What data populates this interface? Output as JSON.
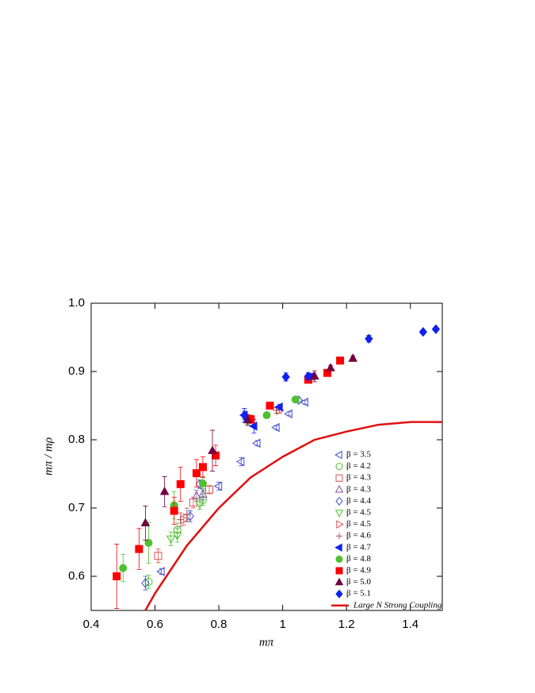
{
  "chart_data": {
    "type": "scatter",
    "x_label": "mπ",
    "y_label": "mπ / mρ",
    "xlim": [
      0.4,
      1.5
    ],
    "ylim": [
      0.55,
      1.0
    ],
    "xticks": [
      0.4,
      0.6,
      0.8,
      1.0,
      1.2,
      1.4
    ],
    "yticks": [
      0.6,
      0.7,
      0.8,
      0.9,
      {
        "value": 1.0,
        "label": "1.0"
      }
    ],
    "legend": "lower right",
    "series": [
      {
        "name": "β = 3.5",
        "color": "#4050d0",
        "marker": "tri-left",
        "filled": false,
        "x": [
          0.62,
          0.8,
          0.87,
          0.92,
          0.98,
          1.02,
          1.07
        ],
        "values": [
          0.607,
          0.732,
          0.768,
          0.795,
          0.818,
          0.838,
          0.855
        ],
        "yerr": [
          0.004,
          0.006,
          0.006,
          0.004,
          0.003,
          0.003,
          0.003
        ]
      },
      {
        "name": "β = 4.2",
        "color": "#50c030",
        "marker": "circle",
        "filled": false,
        "x": [
          0.58,
          0.67,
          0.75
        ],
        "values": [
          0.592,
          0.668,
          0.712
        ],
        "yerr": [
          0.01,
          0.01,
          0.008
        ]
      },
      {
        "name": "β = 4.3",
        "color": "#e05050",
        "marker": "square",
        "filled": false,
        "x": [
          0.61,
          0.72,
          0.77
        ],
        "values": [
          0.63,
          0.708,
          0.727
        ],
        "yerr": [
          0.01,
          0.008,
          0.006
        ]
      },
      {
        "name": "β = 4.3",
        "color": "#8050a0",
        "marker": "tri-up",
        "filled": false,
        "x": [
          0.73,
          0.75
        ],
        "values": [
          0.718,
          0.72
        ],
        "yerr": [
          0.008,
          0.008
        ]
      },
      {
        "name": "β = 4.4",
        "color": "#4050d0",
        "marker": "diamond",
        "filled": false,
        "x": [
          0.57,
          0.71,
          0.74,
          1.05
        ],
        "values": [
          0.59,
          0.688,
          0.735,
          0.858
        ],
        "yerr": [
          0.01,
          0.008,
          0.006,
          0.003
        ]
      },
      {
        "name": "β = 4.5",
        "color": "#50c030",
        "marker": "tri-down",
        "filled": false,
        "x": [
          0.65,
          0.67,
          0.74
        ],
        "values": [
          0.655,
          0.66,
          0.706
        ],
        "yerr": [
          0.01,
          0.01,
          0.008
        ]
      },
      {
        "name": "β = 4.5",
        "color": "#e05050",
        "marker": "tri-right",
        "filled": false,
        "x": [
          0.69,
          0.99
        ],
        "values": [
          0.683,
          0.843
        ],
        "yerr": [
          0.008,
          0.004
        ]
      },
      {
        "name": "β = 4.6",
        "color": "#b05050",
        "marker": "plus",
        "filled": false,
        "x": [
          0.68,
          0.7,
          0.98
        ],
        "values": [
          0.683,
          0.69,
          0.843
        ],
        "yerr": [
          0.01,
          0.01,
          0.004
        ]
      },
      {
        "name": "β = 4.7",
        "color": "#1020f0",
        "marker": "tri-left",
        "filled": true,
        "x": [
          0.88,
          0.91,
          0.99,
          1.09
        ],
        "values": [
          0.836,
          0.82,
          0.848,
          0.893
        ],
        "yerr": [
          0.006,
          0.01,
          0.004,
          0.004
        ]
      },
      {
        "name": "β = 4.8",
        "color": "#50c030",
        "marker": "circle",
        "filled": true,
        "x": [
          0.5,
          0.58,
          0.66,
          0.75,
          0.89,
          0.95,
          1.04
        ],
        "values": [
          0.612,
          0.649,
          0.704,
          0.736,
          0.829,
          0.836,
          0.859
        ],
        "yerr": [
          0.02,
          0.03,
          0.02,
          0.01,
          0.006,
          0.004,
          0.003
        ]
      },
      {
        "name": "β = 4.9",
        "color": "#ff0000",
        "marker": "square",
        "filled": true,
        "x": [
          0.48,
          0.55,
          0.66,
          0.68,
          0.73,
          0.75,
          0.79,
          0.9,
          0.96,
          1.08,
          1.14,
          1.18
        ],
        "values": [
          0.6,
          0.64,
          0.696,
          0.735,
          0.751,
          0.76,
          0.777,
          0.83,
          0.85,
          0.888,
          0.898,
          0.916
        ],
        "yerr": [
          0.047,
          0.03,
          0.02,
          0.025,
          0.02,
          0.015,
          0.015,
          0.006,
          0.004,
          0.004,
          0.004,
          0.004
        ]
      },
      {
        "name": "β = 5.0",
        "color": "#700040",
        "marker": "tri-up",
        "filled": true,
        "x": [
          0.57,
          0.63,
          0.78,
          0.89,
          1.1,
          1.15,
          1.22
        ],
        "values": [
          0.678,
          0.724,
          0.784,
          0.829,
          0.893,
          0.905,
          0.919
        ],
        "yerr": [
          0.025,
          0.022,
          0.03,
          0.008,
          0.008,
          0.004,
          0.004
        ]
      },
      {
        "name": "β = 5.1",
        "color": "#1020f0",
        "marker": "diamond",
        "filled": true,
        "x": [
          0.88,
          1.01,
          1.08,
          1.27,
          1.44,
          1.48
        ],
        "values": [
          0.836,
          0.892,
          0.893,
          0.948,
          0.958,
          0.962
        ],
        "yerr": [
          0.01,
          0.006,
          0.005,
          0.005,
          0.003,
          0.003
        ]
      }
    ],
    "curve": {
      "name": "Large N Strong Coupling",
      "color": "#e01010",
      "x": [
        0.57,
        0.6,
        0.7,
        0.8,
        0.9,
        1.0,
        1.1,
        1.2,
        1.3,
        1.4,
        1.5
      ],
      "values": [
        0.55,
        0.575,
        0.645,
        0.7,
        0.745,
        0.775,
        0.8,
        0.812,
        0.822,
        0.826,
        0.826
      ]
    }
  }
}
